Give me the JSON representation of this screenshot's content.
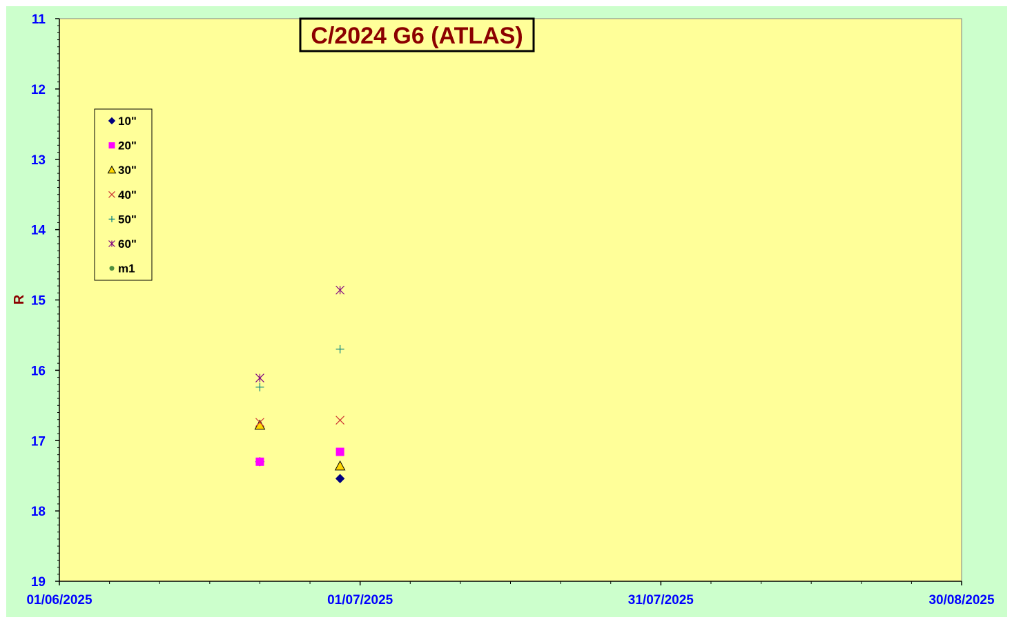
{
  "chart_data": {
    "type": "scatter",
    "title": "C/2024 G6 (ATLAS)",
    "xlabel": "",
    "ylabel": "R",
    "x_axis": {
      "type": "date",
      "min": "2025-06-01",
      "max": "2025-08-30",
      "major_ticks": [
        "01/06/2025",
        "01/07/2025",
        "31/07/2025",
        "30/08/2025"
      ],
      "major_tick_dates": [
        "2025-06-01",
        "2025-07-01",
        "2025-07-31",
        "2025-08-30"
      ]
    },
    "y_axis": {
      "min": 11,
      "max": 19,
      "inverted": true,
      "major_ticks": [
        11,
        12,
        13,
        14,
        15,
        16,
        17,
        18,
        19
      ]
    },
    "grid": false,
    "legend_position": "top-left",
    "series": [
      {
        "name": "10\"",
        "marker": "diamond",
        "color": "#000080",
        "points": [
          {
            "x": "2025-06-21",
            "y": 17.3
          },
          {
            "x": "2025-06-29",
            "y": 17.54
          }
        ]
      },
      {
        "name": "20\"",
        "marker": "square",
        "color": "#ff00ff",
        "points": [
          {
            "x": "2025-06-21",
            "y": 17.3
          },
          {
            "x": "2025-06-29",
            "y": 17.16
          }
        ]
      },
      {
        "name": "30\"",
        "marker": "triangle",
        "color": "#ffd700",
        "points": [
          {
            "x": "2025-06-21",
            "y": 16.78
          },
          {
            "x": "2025-06-29",
            "y": 17.36
          }
        ]
      },
      {
        "name": "40\"",
        "marker": "x",
        "color": "#cc3333",
        "points": [
          {
            "x": "2025-06-21",
            "y": 16.74
          },
          {
            "x": "2025-06-29",
            "y": 16.71
          }
        ]
      },
      {
        "name": "50\"",
        "marker": "plus",
        "color": "#008080",
        "points": [
          {
            "x": "2025-06-21",
            "y": 16.24
          },
          {
            "x": "2025-06-29",
            "y": 15.7
          }
        ]
      },
      {
        "name": "60\"",
        "marker": "asterisk",
        "color": "#800080",
        "points": [
          {
            "x": "2025-06-21",
            "y": 16.11
          },
          {
            "x": "2025-06-29",
            "y": 14.86
          }
        ]
      },
      {
        "name": "m1",
        "marker": "circle",
        "color": "#4f8f3f",
        "points": []
      }
    ]
  },
  "colors": {
    "outer_background": "#ccffcc",
    "plot_background": "#ffff99",
    "tick_label": "#0000ff",
    "title": "#8b0000"
  }
}
